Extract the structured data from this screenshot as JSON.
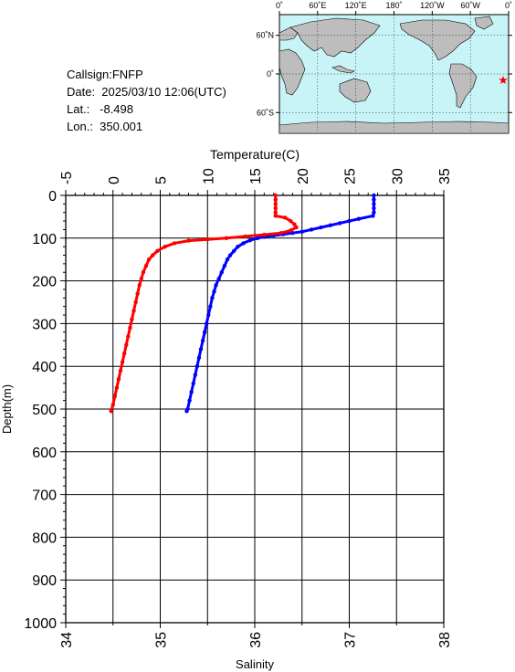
{
  "info": {
    "callsign": "Callsign:FNFP",
    "date": "Date:  2025/03/10 12:06(UTC)",
    "lat": "Lat.:   -8.498",
    "lon": "Lon.:  350.001"
  },
  "map": {
    "top_labels": [
      "0˚",
      "60˚E",
      "120˚E",
      "180˚",
      "120˚W",
      "60˚W",
      "0˚"
    ],
    "lat_labels": [
      "60˚N",
      "0˚",
      "60˚S"
    ],
    "ocean_color": "#c8f4f8",
    "land_color": "#bdbdbd",
    "marker_color": "#ff0000",
    "marker_icon": "star-icon"
  },
  "chart_data": {
    "type": "line",
    "title": "",
    "temperature_axis": {
      "label": "Temperature(C)",
      "range": [
        -5,
        35
      ],
      "ticks": [
        "-5",
        "0",
        "5",
        "10",
        "15",
        "20",
        "25",
        "30",
        "35"
      ]
    },
    "salinity_axis": {
      "label": "Salinity",
      "range": [
        34,
        38
      ],
      "ticks": [
        "34",
        "35",
        "36",
        "37",
        "38"
      ]
    },
    "depth_axis": {
      "label": "Depth(m)",
      "range": [
        0,
        1000
      ],
      "inverted": true,
      "ticks": [
        "0",
        "100",
        "200",
        "300",
        "400",
        "500",
        "600",
        "700",
        "800",
        "900",
        "1000"
      ]
    },
    "grid": true,
    "series": [
      {
        "name": "Temperature",
        "color": "#0000ff",
        "axis": "temperature",
        "points": [
          [
            27.6,
            0
          ],
          [
            27.6,
            10
          ],
          [
            27.6,
            20
          ],
          [
            27.6,
            30
          ],
          [
            27.6,
            40
          ],
          [
            27.5,
            48
          ],
          [
            26.0,
            55
          ],
          [
            25.0,
            60
          ],
          [
            24.0,
            65
          ],
          [
            23.0,
            70
          ],
          [
            22.0,
            75
          ],
          [
            21.0,
            80
          ],
          [
            20.0,
            85
          ],
          [
            19.0,
            88
          ],
          [
            18.0,
            91
          ],
          [
            17.0,
            94
          ],
          [
            16.0,
            97
          ],
          [
            15.3,
            100
          ],
          [
            14.5,
            105
          ],
          [
            13.8,
            112
          ],
          [
            13.2,
            120
          ],
          [
            12.8,
            130
          ],
          [
            12.4,
            140
          ],
          [
            12.1,
            150
          ],
          [
            11.8,
            165
          ],
          [
            11.5,
            180
          ],
          [
            11.2,
            195
          ],
          [
            10.9,
            210
          ],
          [
            10.7,
            225
          ],
          [
            10.5,
            240
          ],
          [
            10.3,
            260
          ],
          [
            10.1,
            280
          ],
          [
            9.9,
            300
          ],
          [
            9.7,
            320
          ],
          [
            9.5,
            340
          ],
          [
            9.3,
            360
          ],
          [
            9.1,
            380
          ],
          [
            8.9,
            400
          ],
          [
            8.7,
            420
          ],
          [
            8.5,
            440
          ],
          [
            8.3,
            460
          ],
          [
            8.1,
            480
          ],
          [
            7.9,
            500
          ],
          [
            7.8,
            505
          ]
        ]
      },
      {
        "name": "Salinity",
        "color": "#ff0000",
        "axis": "salinity",
        "points": [
          [
            36.22,
            0
          ],
          [
            36.22,
            10
          ],
          [
            36.22,
            20
          ],
          [
            36.22,
            30
          ],
          [
            36.22,
            40
          ],
          [
            36.22,
            48
          ],
          [
            36.32,
            52
          ],
          [
            36.38,
            60
          ],
          [
            36.42,
            68
          ],
          [
            36.44,
            75
          ],
          [
            36.38,
            82
          ],
          [
            36.28,
            88
          ],
          [
            36.1,
            92
          ],
          [
            35.9,
            96
          ],
          [
            35.7,
            100
          ],
          [
            35.5,
            103
          ],
          [
            35.3,
            106
          ],
          [
            35.15,
            112
          ],
          [
            35.05,
            120
          ],
          [
            34.97,
            130
          ],
          [
            34.92,
            140
          ],
          [
            34.88,
            150
          ],
          [
            34.85,
            165
          ],
          [
            34.82,
            180
          ],
          [
            34.8,
            195
          ],
          [
            34.78,
            210
          ],
          [
            34.76,
            230
          ],
          [
            34.74,
            250
          ],
          [
            34.72,
            270
          ],
          [
            34.7,
            290
          ],
          [
            34.68,
            310
          ],
          [
            34.66,
            330
          ],
          [
            34.64,
            350
          ],
          [
            34.62,
            370
          ],
          [
            34.6,
            390
          ],
          [
            34.58,
            410
          ],
          [
            34.56,
            430
          ],
          [
            34.54,
            450
          ],
          [
            34.52,
            470
          ],
          [
            34.5,
            490
          ],
          [
            34.48,
            505
          ]
        ]
      }
    ]
  }
}
